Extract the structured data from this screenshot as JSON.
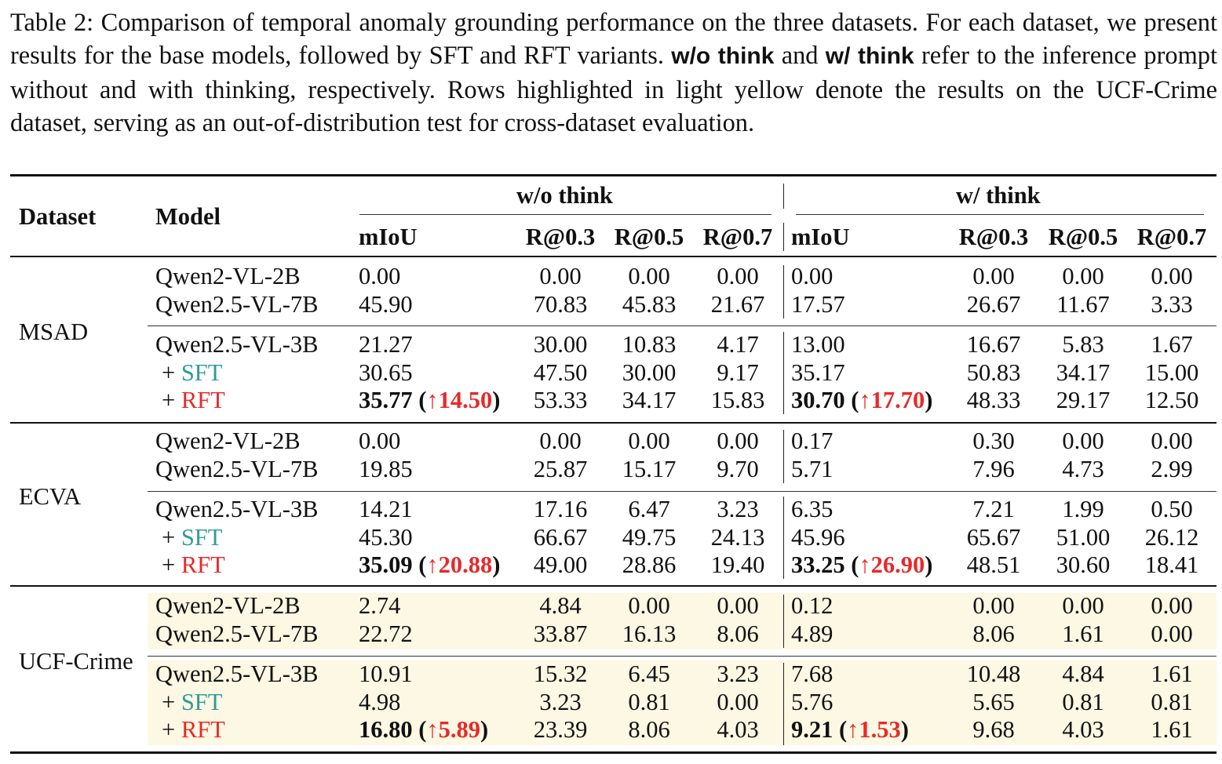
{
  "caption": {
    "part1": "Table 2: Comparison of temporal anomaly grounding performance on the three datasets. For each dataset, we present results for the base models, followed by SFT and RFT variants. ",
    "bold1": "w/o think",
    "part2": " and ",
    "bold2": "w/ think",
    "part3": " refer to the inference prompt without and with thinking, respectively. Rows highlighted in light yellow denote the results on the UCF-Crime dataset, serving as an out-of-distribution test for cross-dataset evaluation."
  },
  "header": {
    "dataset": "Dataset",
    "model": "Model",
    "group_wo": "w/o think",
    "group_w": "w/ think",
    "cols": [
      "mIoU",
      "R@0.3",
      "R@0.5",
      "R@0.7"
    ]
  },
  "datasets": [
    {
      "name": "MSAD",
      "rows": [
        {
          "prefix": "",
          "model": "Qwen2-VL-2B",
          "wo": [
            "0.00",
            "0.00",
            "0.00",
            "0.00"
          ],
          "w": [
            "0.00",
            "0.00",
            "0.00",
            "0.00"
          ]
        },
        {
          "prefix": "",
          "model": "Qwen2.5-VL-7B",
          "wo": [
            "45.90",
            "70.83",
            "45.83",
            "21.67"
          ],
          "w": [
            "17.57",
            "26.67",
            "11.67",
            "3.33"
          ]
        },
        {
          "prefix": "",
          "model": "Qwen2.5-VL-3B",
          "wo": [
            "21.27",
            "30.00",
            "10.83",
            "4.17"
          ],
          "w": [
            "13.00",
            "16.67",
            "5.83",
            "1.67"
          ]
        },
        {
          "prefix": "+ ",
          "model": "SFT",
          "wo": [
            "30.65",
            "47.50",
            "30.00",
            "9.17"
          ],
          "w": [
            "35.17",
            "50.83",
            "34.17",
            "15.00"
          ]
        },
        {
          "prefix": "+ ",
          "model": "RFT",
          "wo": [
            "35.77",
            "53.33",
            "34.17",
            "15.83"
          ],
          "w": [
            "30.70",
            "48.33",
            "29.17",
            "12.50"
          ],
          "wo_gain": "(↑14.50)",
          "w_gain": "(↑17.70)"
        }
      ]
    },
    {
      "name": "ECVA",
      "rows": [
        {
          "prefix": "",
          "model": "Qwen2-VL-2B",
          "wo": [
            "0.00",
            "0.00",
            "0.00",
            "0.00"
          ],
          "w": [
            "0.17",
            "0.30",
            "0.00",
            "0.00"
          ]
        },
        {
          "prefix": "",
          "model": "Qwen2.5-VL-7B",
          "wo": [
            "19.85",
            "25.87",
            "15.17",
            "9.70"
          ],
          "w": [
            "5.71",
            "7.96",
            "4.73",
            "2.99"
          ]
        },
        {
          "prefix": "",
          "model": "Qwen2.5-VL-3B",
          "wo": [
            "14.21",
            "17.16",
            "6.47",
            "3.23"
          ],
          "w": [
            "6.35",
            "7.21",
            "1.99",
            "0.50"
          ]
        },
        {
          "prefix": "+ ",
          "model": "SFT",
          "wo": [
            "45.30",
            "66.67",
            "49.75",
            "24.13"
          ],
          "w": [
            "45.96",
            "65.67",
            "51.00",
            "26.12"
          ]
        },
        {
          "prefix": "+ ",
          "model": "RFT",
          "wo": [
            "35.09",
            "49.00",
            "28.86",
            "19.40"
          ],
          "w": [
            "33.25",
            "48.51",
            "30.60",
            "18.41"
          ],
          "wo_gain": "(↑20.88)",
          "w_gain": "(↑26.90)"
        }
      ]
    },
    {
      "name": "UCF-Crime",
      "rows": [
        {
          "prefix": "",
          "model": "Qwen2-VL-2B",
          "wo": [
            "2.74",
            "4.84",
            "0.00",
            "0.00"
          ],
          "w": [
            "0.12",
            "0.00",
            "0.00",
            "0.00"
          ]
        },
        {
          "prefix": "",
          "model": "Qwen2.5-VL-7B",
          "wo": [
            "22.72",
            "33.87",
            "16.13",
            "8.06"
          ],
          "w": [
            "4.89",
            "8.06",
            "1.61",
            "0.00"
          ]
        },
        {
          "prefix": "",
          "model": "Qwen2.5-VL-3B",
          "wo": [
            "10.91",
            "15.32",
            "6.45",
            "3.23"
          ],
          "w": [
            "7.68",
            "10.48",
            "4.84",
            "1.61"
          ]
        },
        {
          "prefix": "+ ",
          "model": "SFT",
          "wo": [
            "4.98",
            "3.23",
            "0.81",
            "0.00"
          ],
          "w": [
            "5.76",
            "5.65",
            "0.81",
            "0.81"
          ]
        },
        {
          "prefix": "+ ",
          "model": "RFT",
          "wo": [
            "16.80",
            "23.39",
            "8.06",
            "4.03"
          ],
          "w": [
            "9.21",
            "9.68",
            "4.03",
            "1.61"
          ],
          "wo_gain": "(↑5.89)",
          "w_gain": "(↑1.53)"
        }
      ]
    }
  ]
}
